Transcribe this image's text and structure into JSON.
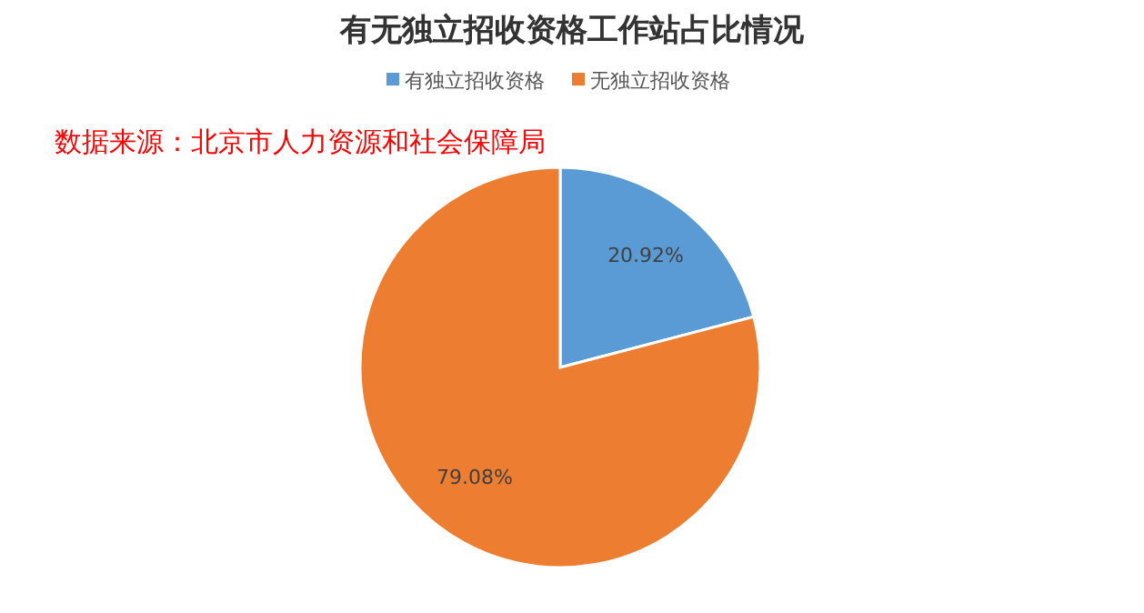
{
  "chart_data": {
    "type": "pie",
    "title": "有无独立招收资格工作站占比情况",
    "categories": [
      "有独立招收资格",
      "无独立招收资格"
    ],
    "values": [
      20.92,
      79.08
    ],
    "colors": [
      "#5b9bd5",
      "#ed7d31"
    ],
    "value_labels": [
      "20.92%",
      "79.08%"
    ],
    "legend": "top",
    "annotations": [
      "数据来源：北京市人力资源和社会保障局"
    ]
  }
}
